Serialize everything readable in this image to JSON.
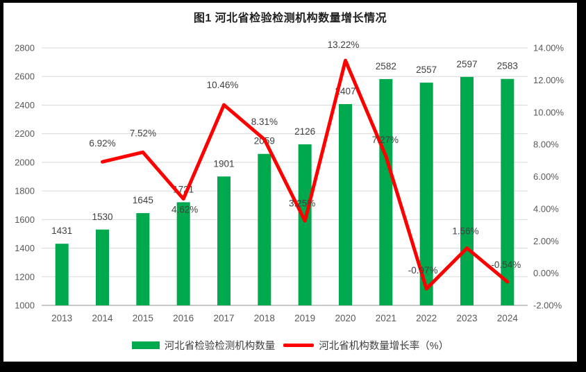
{
  "title": "图1 河北省检验检测机构数量增长情况",
  "chart_data": {
    "type": "combo",
    "title": "图1 河北省检验检测机构数量增长情况",
    "categories": [
      "2013",
      "2014",
      "2015",
      "2016",
      "2017",
      "2018",
      "2019",
      "2020",
      "2021",
      "2022",
      "2023",
      "2024"
    ],
    "series": [
      {
        "name": "河北省检验检测机构数量",
        "type": "bar",
        "color": "#00A84E",
        "values": [
          1431,
          1530,
          1645,
          1721,
          1901,
          2059,
          2126,
          2407,
          2582,
          2557,
          2597,
          2583
        ],
        "labels": [
          "1431",
          "1530",
          "1645",
          "1721",
          "1901",
          "2059",
          "2126",
          "2407",
          "2582",
          "2557",
          "2597",
          "2583"
        ]
      },
      {
        "name": "河北省机构数量增长率（%）",
        "type": "line",
        "color": "#FF0000",
        "values": [
          null,
          6.92,
          7.52,
          4.62,
          10.46,
          8.31,
          3.25,
          13.22,
          7.27,
          -0.97,
          1.56,
          -0.54
        ],
        "labels": [
          null,
          "6.92%",
          "7.52%",
          "4.62%",
          "10.46%",
          "8.31%",
          "3.25%",
          "13.22%",
          "7.27%",
          "-0.97%",
          "1.56%",
          "-0.54%"
        ]
      }
    ],
    "left_axis": {
      "min": 1000,
      "max": 2800,
      "step": 200,
      "ticks": [
        "2800",
        "2600",
        "2400",
        "2200",
        "2000",
        "1800",
        "1600",
        "1400",
        "1200",
        "1000"
      ]
    },
    "right_axis": {
      "min": -2,
      "max": 14,
      "step": 2,
      "ticks": [
        "14.00%",
        "12.00%",
        "10.00%",
        "8.00%",
        "6.00%",
        "4.00%",
        "2.00%",
        "0.00%",
        "-2.00%"
      ]
    },
    "grid": "horizontal",
    "legend_position": "bottom",
    "colors": {
      "grid": "#D9D9D9",
      "axis_line": "#C6C6C6",
      "tick_text": "#595959",
      "data_label": "#404040",
      "title_text": "#1F1F1F",
      "frame": "#000000"
    }
  }
}
